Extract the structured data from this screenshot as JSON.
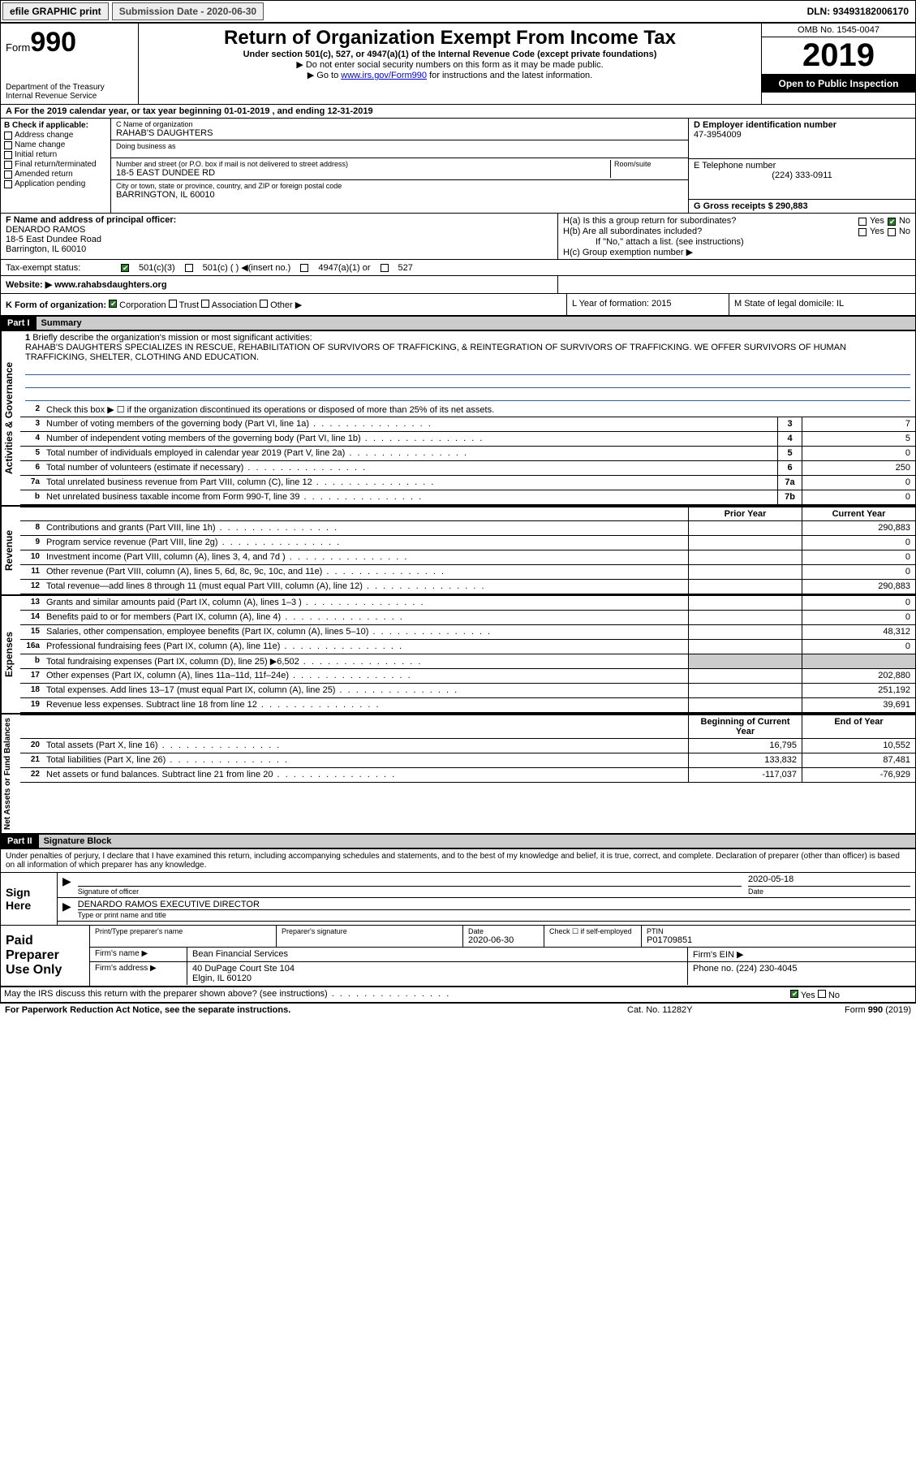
{
  "topbar": {
    "efile": "efile GRAPHIC print",
    "subdate_label": "Submission Date - 2020-06-30",
    "dln": "DLN: 93493182006170"
  },
  "header": {
    "form_label": "Form",
    "form_num": "990",
    "dept": "Department of the Treasury",
    "irs": "Internal Revenue Service",
    "title": "Return of Organization Exempt From Income Tax",
    "sub1": "Under section 501(c), 527, or 4947(a)(1) of the Internal Revenue Code (except private foundations)",
    "sub2": "▶ Do not enter social security numbers on this form as it may be made public.",
    "sub3_pre": "▶ Go to ",
    "sub3_link": "www.irs.gov/Form990",
    "sub3_post": " for instructions and the latest information.",
    "omb": "OMB No. 1545-0047",
    "year": "2019",
    "open": "Open to Public Inspection"
  },
  "period": {
    "a_label": "A For the 2019 calendar year, or tax year beginning 01-01-2019   , and ending 12-31-2019"
  },
  "boxB": {
    "label": "B Check if applicable:",
    "opts": [
      "Address change",
      "Name change",
      "Initial return",
      "Final return/terminated",
      "Amended return",
      "Application pending"
    ]
  },
  "boxC": {
    "name_lbl": "C Name of organization",
    "name": "RAHAB'S DAUGHTERS",
    "dba_lbl": "Doing business as",
    "street_lbl": "Number and street (or P.O. box if mail is not delivered to street address)",
    "room_lbl": "Room/suite",
    "street": "18-5 EAST DUNDEE RD",
    "city_lbl": "City or town, state or province, country, and ZIP or foreign postal code",
    "city": "BARRINGTON, IL  60010"
  },
  "boxD": {
    "lbl": "D Employer identification number",
    "val": "47-3954009"
  },
  "boxE": {
    "lbl": "E Telephone number",
    "val": "(224) 333-0911"
  },
  "boxG": {
    "lbl": "G Gross receipts $ 290,883"
  },
  "boxF": {
    "lbl": "F  Name and address of principal officer:",
    "name": "DENARDO RAMOS",
    "street": "18-5 East Dundee Road",
    "city": "Barrington, IL  60010"
  },
  "boxH": {
    "a": "H(a)  Is this a group return for subordinates?",
    "b": "H(b)  Are all subordinates included?",
    "b_note": "If \"No,\" attach a list. (see instructions)",
    "c": "H(c)  Group exemption number ▶",
    "yes": "Yes",
    "no": "No"
  },
  "taxex": {
    "lbl": "Tax-exempt status:",
    "c3": "501(c)(3)",
    "c": "501(c) (  ) ◀(insert no.)",
    "a4947": "4947(a)(1) or",
    "s527": "527"
  },
  "website": {
    "lbl": "Website: ▶",
    "val": "www.rahabsdaughters.org"
  },
  "korg": {
    "lbl": "K Form of organization:",
    "opts": [
      "Corporation",
      "Trust",
      "Association",
      "Other ▶"
    ],
    "L": "L Year of formation: 2015",
    "M": "M State of legal domicile: IL"
  },
  "part1": {
    "hdr": "Part I",
    "title": "Summary",
    "l1_lbl": "Briefly describe the organization's mission or most significant activities:",
    "l1_text": "RAHAB'S DAUGHTERS SPECIALIZES IN RESCUE, REHABILITATION OF SURVIVORS OF TRAFFICKING, & REINTEGRATION OF SURVIVORS OF TRAFFICKING. WE OFFER SURVIVORS OF HUMAN TRAFFICKING, SHELTER, CLOTHING AND EDUCATION.",
    "l2": "Check this box ▶ ☐ if the organization discontinued its operations or disposed of more than 25% of its net assets.",
    "lines_top": [
      {
        "n": "3",
        "t": "Number of voting members of the governing body (Part VI, line 1a)",
        "bx": "3",
        "v": "7"
      },
      {
        "n": "4",
        "t": "Number of independent voting members of the governing body (Part VI, line 1b)",
        "bx": "4",
        "v": "5"
      },
      {
        "n": "5",
        "t": "Total number of individuals employed in calendar year 2019 (Part V, line 2a)",
        "bx": "5",
        "v": "0"
      },
      {
        "n": "6",
        "t": "Total number of volunteers (estimate if necessary)",
        "bx": "6",
        "v": "250"
      },
      {
        "n": "7a",
        "t": "Total unrelated business revenue from Part VIII, column (C), line 12",
        "bx": "7a",
        "v": "0"
      },
      {
        "n": "b",
        "t": "Net unrelated business taxable income from Form 990-T, line 39",
        "bx": "7b",
        "v": "0"
      }
    ],
    "col_prior": "Prior Year",
    "col_curr": "Current Year",
    "revenue": [
      {
        "n": "8",
        "t": "Contributions and grants (Part VIII, line 1h)",
        "p": "",
        "c": "290,883"
      },
      {
        "n": "9",
        "t": "Program service revenue (Part VIII, line 2g)",
        "p": "",
        "c": "0"
      },
      {
        "n": "10",
        "t": "Investment income (Part VIII, column (A), lines 3, 4, and 7d )",
        "p": "",
        "c": "0"
      },
      {
        "n": "11",
        "t": "Other revenue (Part VIII, column (A), lines 5, 6d, 8c, 9c, 10c, and 11e)",
        "p": "",
        "c": "0"
      },
      {
        "n": "12",
        "t": "Total revenue—add lines 8 through 11 (must equal Part VIII, column (A), line 12)",
        "p": "",
        "c": "290,883"
      }
    ],
    "expenses": [
      {
        "n": "13",
        "t": "Grants and similar amounts paid (Part IX, column (A), lines 1–3 )",
        "p": "",
        "c": "0"
      },
      {
        "n": "14",
        "t": "Benefits paid to or for members (Part IX, column (A), line 4)",
        "p": "",
        "c": "0"
      },
      {
        "n": "15",
        "t": "Salaries, other compensation, employee benefits (Part IX, column (A), lines 5–10)",
        "p": "",
        "c": "48,312"
      },
      {
        "n": "16a",
        "t": "Professional fundraising fees (Part IX, column (A), line 11e)",
        "p": "",
        "c": "0"
      },
      {
        "n": "b",
        "t": "Total fundraising expenses (Part IX, column (D), line 25) ▶6,502",
        "p": "shade",
        "c": "shade"
      },
      {
        "n": "17",
        "t": "Other expenses (Part IX, column (A), lines 11a–11d, 11f–24e)",
        "p": "",
        "c": "202,880"
      },
      {
        "n": "18",
        "t": "Total expenses. Add lines 13–17 (must equal Part IX, column (A), line 25)",
        "p": "",
        "c": "251,192"
      },
      {
        "n": "19",
        "t": "Revenue less expenses. Subtract line 18 from line 12",
        "p": "",
        "c": "39,691"
      }
    ],
    "col_begin": "Beginning of Current Year",
    "col_end": "End of Year",
    "net": [
      {
        "n": "20",
        "t": "Total assets (Part X, line 16)",
        "p": "16,795",
        "c": "10,552"
      },
      {
        "n": "21",
        "t": "Total liabilities (Part X, line 26)",
        "p": "133,832",
        "c": "87,481"
      },
      {
        "n": "22",
        "t": "Net assets or fund balances. Subtract line 21 from line 20",
        "p": "-117,037",
        "c": "-76,929"
      }
    ],
    "side_gov": "Activities & Governance",
    "side_rev": "Revenue",
    "side_exp": "Expenses",
    "side_net": "Net Assets or Fund Balances"
  },
  "part2": {
    "hdr": "Part II",
    "title": "Signature Block",
    "decl": "Under penalties of perjury, I declare that I have examined this return, including accompanying schedules and statements, and to the best of my knowledge and belief, it is true, correct, and complete. Declaration of preparer (other than officer) is based on all information of which preparer has any knowledge.",
    "sign_here": "Sign Here",
    "sig_officer": "Signature of officer",
    "sig_date_val": "2020-05-18",
    "sig_date": "Date",
    "sig_name": "DENARDO RAMOS  EXECUTIVE DIRECTOR",
    "sig_type": "Type or print name and title",
    "paid": "Paid Preparer Use Only",
    "p_name": "Print/Type preparer's name",
    "p_sig": "Preparer's signature",
    "p_date": "Date",
    "p_date_v": "2020-06-30",
    "p_check": "Check ☐ if self-employed",
    "p_ptin": "PTIN",
    "p_ptin_v": "P01709851",
    "firm_name_l": "Firm's name    ▶",
    "firm_name": "Bean Financial Services",
    "firm_ein": "Firm's EIN ▶",
    "firm_addr_l": "Firm's address ▶",
    "firm_addr1": "40 DuPage Court Ste 104",
    "firm_addr2": "Elgin, IL  60120",
    "firm_phone": "Phone no. (224) 230-4045",
    "discuss": "May the IRS discuss this return with the preparer shown above? (see instructions)",
    "yes": "Yes",
    "no": "No"
  },
  "footer": {
    "pra": "For Paperwork Reduction Act Notice, see the separate instructions.",
    "cat": "Cat. No. 11282Y",
    "form": "Form 990 (2019)"
  }
}
